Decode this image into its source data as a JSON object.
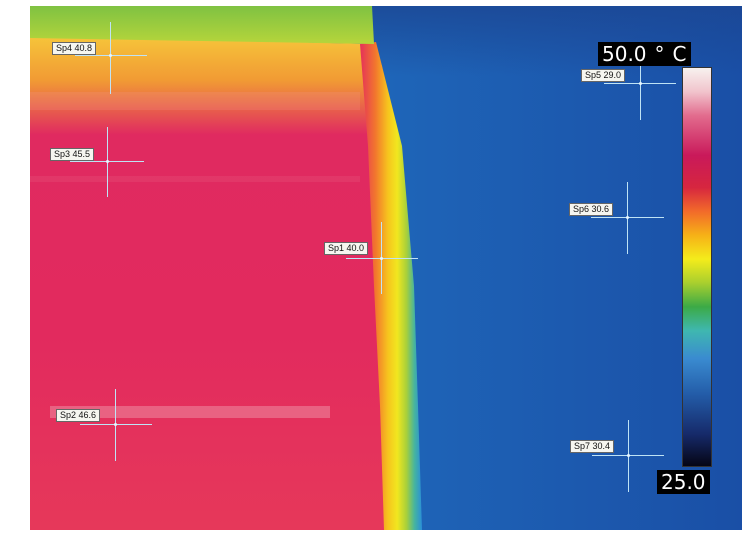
{
  "scale": {
    "max_value": "50.0",
    "degree_symbol": "°",
    "unit": "C",
    "min_value": "25.0",
    "gradient_colors": [
      "#f7f2ef",
      "#e26b8d",
      "#c9195a",
      "#f26a2a",
      "#f4ec1b",
      "#3caa46",
      "#3a8bd0",
      "#162a6a",
      "#050514"
    ]
  },
  "spots": [
    {
      "label": "Sp4 40.8"
    },
    {
      "label": "Sp3 45.5"
    },
    {
      "label": "Sp1 40.0"
    },
    {
      "label": "Sp2 46.6"
    },
    {
      "label": "Sp5 29.0"
    },
    {
      "label": "Sp6 30.6"
    },
    {
      "label": "Sp7 30.4"
    }
  ],
  "colors": {
    "hot": "#e0205a",
    "edge_yellow": "#f6e21f",
    "cold": "#1a62b4",
    "top_green": "#8cc63f"
  }
}
